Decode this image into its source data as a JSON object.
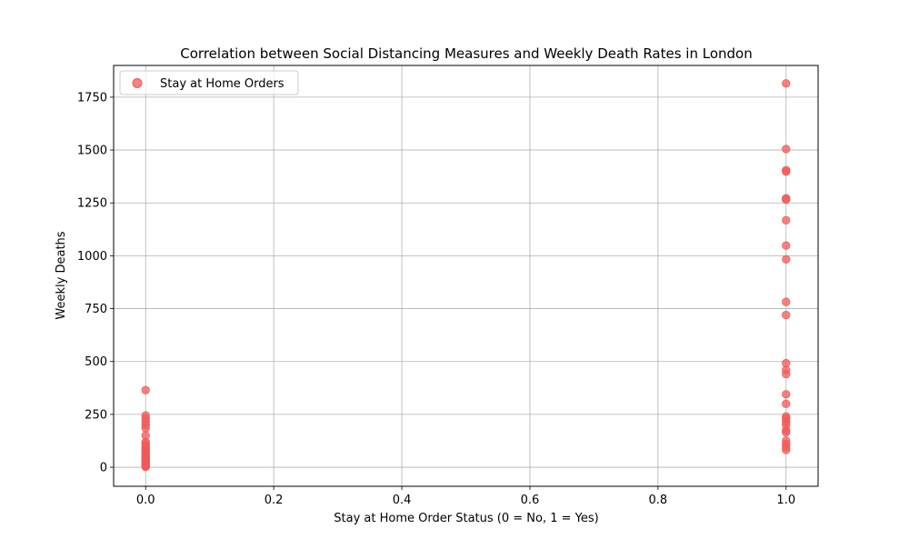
{
  "chart_data": {
    "type": "scatter",
    "title": "Correlation between Social Distancing Measures and Weekly Death Rates in London",
    "xlabel": "Stay at Home Order Status (0 = No, 1 = Yes)",
    "ylabel": "Weekly Deaths",
    "xlim": [
      -0.05,
      1.05
    ],
    "ylim": [
      -90,
      1900
    ],
    "xticks": [
      0.0,
      0.2,
      0.4,
      0.6,
      0.8,
      1.0
    ],
    "xtick_labels": [
      "0.0",
      "0.2",
      "0.4",
      "0.6",
      "0.8",
      "1.0"
    ],
    "yticks": [
      0,
      250,
      500,
      750,
      1000,
      1250,
      1500,
      1750
    ],
    "ytick_labels": [
      "0",
      "250",
      "500",
      "750",
      "1000",
      "1250",
      "1500",
      "1750"
    ],
    "grid": true,
    "legend_position": "upper-left",
    "series": [
      {
        "name": "Stay at Home Orders",
        "color": "#f05a5a",
        "points": [
          {
            "x": 0,
            "y": 365
          },
          {
            "x": 0,
            "y": 245
          },
          {
            "x": 0,
            "y": 230
          },
          {
            "x": 0,
            "y": 215
          },
          {
            "x": 0,
            "y": 200
          },
          {
            "x": 0,
            "y": 185
          },
          {
            "x": 0,
            "y": 150
          },
          {
            "x": 0,
            "y": 120
          },
          {
            "x": 0,
            "y": 110
          },
          {
            "x": 0,
            "y": 100
          },
          {
            "x": 0,
            "y": 92
          },
          {
            "x": 0,
            "y": 85
          },
          {
            "x": 0,
            "y": 78
          },
          {
            "x": 0,
            "y": 72
          },
          {
            "x": 0,
            "y": 65
          },
          {
            "x": 0,
            "y": 60
          },
          {
            "x": 0,
            "y": 55
          },
          {
            "x": 0,
            "y": 50
          },
          {
            "x": 0,
            "y": 45
          },
          {
            "x": 0,
            "y": 40
          },
          {
            "x": 0,
            "y": 35
          },
          {
            "x": 0,
            "y": 30
          },
          {
            "x": 0,
            "y": 25
          },
          {
            "x": 0,
            "y": 20
          },
          {
            "x": 0,
            "y": 15
          },
          {
            "x": 0,
            "y": 10
          },
          {
            "x": 0,
            "y": 5
          },
          {
            "x": 0,
            "y": 2
          },
          {
            "x": 1,
            "y": 1815
          },
          {
            "x": 1,
            "y": 1505
          },
          {
            "x": 1,
            "y": 1405
          },
          {
            "x": 1,
            "y": 1398
          },
          {
            "x": 1,
            "y": 1272
          },
          {
            "x": 1,
            "y": 1265
          },
          {
            "x": 1,
            "y": 1168
          },
          {
            "x": 1,
            "y": 1048
          },
          {
            "x": 1,
            "y": 983
          },
          {
            "x": 1,
            "y": 782
          },
          {
            "x": 1,
            "y": 720
          },
          {
            "x": 1,
            "y": 492
          },
          {
            "x": 1,
            "y": 460
          },
          {
            "x": 1,
            "y": 440
          },
          {
            "x": 1,
            "y": 345
          },
          {
            "x": 1,
            "y": 300
          },
          {
            "x": 1,
            "y": 240
          },
          {
            "x": 1,
            "y": 230
          },
          {
            "x": 1,
            "y": 215
          },
          {
            "x": 1,
            "y": 200
          },
          {
            "x": 1,
            "y": 175
          },
          {
            "x": 1,
            "y": 165
          },
          {
            "x": 1,
            "y": 125
          },
          {
            "x": 1,
            "y": 110
          },
          {
            "x": 1,
            "y": 95
          },
          {
            "x": 1,
            "y": 82
          }
        ]
      }
    ]
  }
}
